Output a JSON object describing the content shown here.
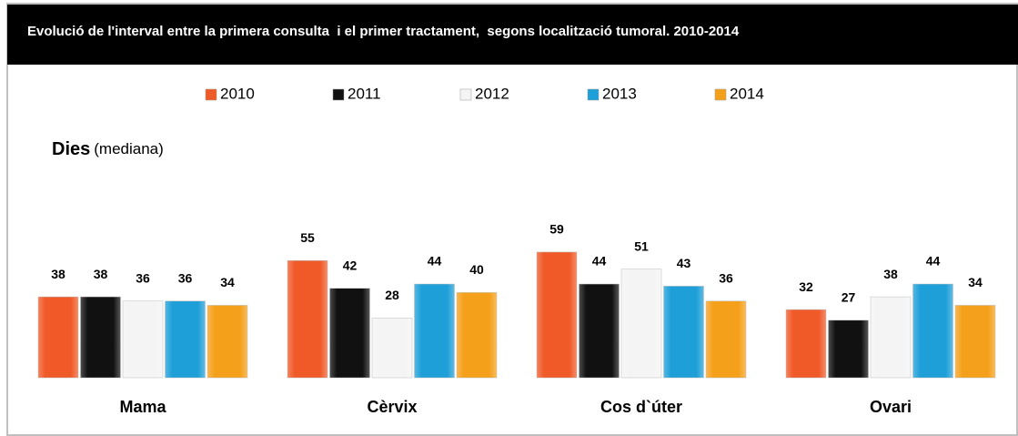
{
  "chart_data": {
    "type": "bar",
    "title": "Evolució de l'interval entre la primera consulta  i el primer tractament,  segons localització tumoral. 2010-2014",
    "y_label": "Dies",
    "y_label_note": "(mediana)",
    "categories": [
      "Mama",
      "Cèrvix",
      "Cos d`úter",
      "Ovari"
    ],
    "series": [
      {
        "name": "2010",
        "color": "#f05a28",
        "values": [
          38,
          55,
          59,
          32
        ]
      },
      {
        "name": "2011",
        "color": "#111111",
        "values": [
          38,
          42,
          44,
          27
        ]
      },
      {
        "name": "2012",
        "color": "#f4f4f4",
        "values": [
          36,
          28,
          51,
          38
        ]
      },
      {
        "name": "2013",
        "color": "#1e9fd8",
        "values": [
          36,
          44,
          43,
          44
        ]
      },
      {
        "name": "2014",
        "color": "#f5a01a",
        "values": [
          34,
          40,
          36,
          34
        ]
      }
    ],
    "legend": "top"
  }
}
